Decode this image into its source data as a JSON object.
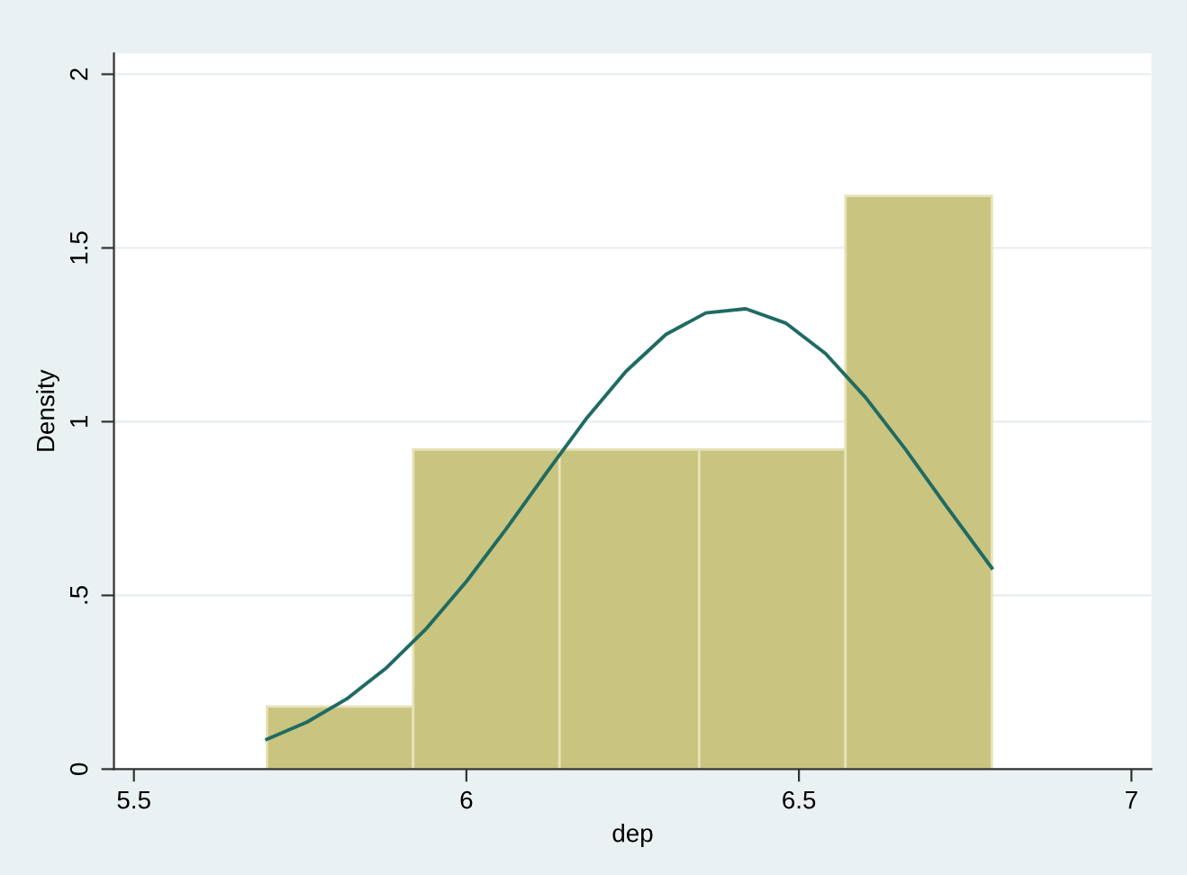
{
  "chart_data": {
    "type": "histogram",
    "xlabel": "dep",
    "ylabel": "Density",
    "bins": [
      5.7,
      5.92,
      6.14,
      6.35,
      6.57,
      6.79
    ],
    "values": [
      0.18,
      0.92,
      0.92,
      0.92,
      1.65
    ],
    "color": "#c9c47f",
    "series": [
      {
        "type": "line",
        "color": "#1f6b63",
        "x": [
          5.7,
          5.76,
          5.82,
          5.88,
          5.94,
          6.0,
          6.06,
          6.12,
          6.18,
          6.24,
          6.3,
          6.36,
          6.42,
          6.48,
          6.54,
          6.6,
          6.66,
          6.72,
          6.79
        ],
        "values": [
          0.086,
          0.135,
          0.202,
          0.292,
          0.405,
          0.54,
          0.692,
          0.852,
          1.008,
          1.145,
          1.251,
          1.313,
          1.325,
          1.284,
          1.196,
          1.07,
          0.921,
          0.761,
          0.579
        ]
      }
    ],
    "xlim": [
      5.47,
      7.03
    ],
    "xticks": [
      5.5,
      6,
      6.5,
      7
    ],
    "ylim": [
      0,
      2.06
    ],
    "yticks": [
      0,
      {
        "value": 0.5,
        "label": ".5"
      },
      1,
      1.5,
      2
    ],
    "grid": "y"
  }
}
